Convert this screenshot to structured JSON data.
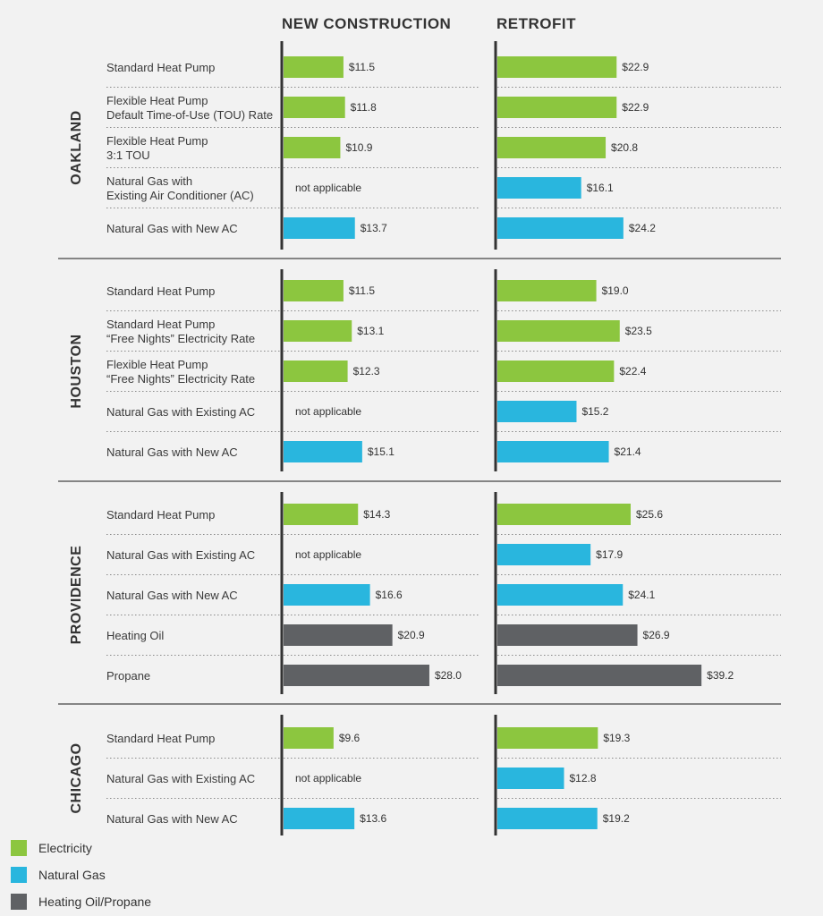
{
  "chart_data": {
    "type": "bar",
    "orientation": "horizontal",
    "panels": [
      "NEW CONSTRUCTION",
      "RETROFIT"
    ],
    "not_applicable_label": "not applicable",
    "value_prefix": "$",
    "xlim": [
      0,
      40
    ],
    "legend": [
      {
        "name": "Electricity",
        "color": "#8cc63f"
      },
      {
        "name": "Natural Gas",
        "color": "#29b6de"
      },
      {
        "name": "Heating Oil/Propane",
        "color": "#5f6164"
      }
    ],
    "cities": [
      {
        "name": "OAKLAND",
        "rows": [
          {
            "label": [
              "Standard Heat Pump"
            ],
            "type": "Electricity",
            "new": "11.5",
            "retrofit": "22.9"
          },
          {
            "label": [
              "Flexible Heat Pump",
              "Default Time-of-Use (TOU) Rate"
            ],
            "type": "Electricity",
            "new": "11.8",
            "retrofit": "22.9"
          },
          {
            "label": [
              "Flexible Heat Pump",
              "3:1 TOU"
            ],
            "type": "Electricity",
            "new": "10.9",
            "retrofit": "20.8"
          },
          {
            "label": [
              "Natural Gas with",
              "Existing Air Conditioner (AC)"
            ],
            "type": "Natural Gas",
            "new": null,
            "retrofit": "16.1"
          },
          {
            "label": [
              "Natural Gas with New AC"
            ],
            "type": "Natural Gas",
            "new": "13.7",
            "retrofit": "24.2"
          }
        ]
      },
      {
        "name": "HOUSTON",
        "rows": [
          {
            "label": [
              "Standard Heat Pump"
            ],
            "type": "Electricity",
            "new": "11.5",
            "retrofit": "19.0"
          },
          {
            "label": [
              "Standard Heat Pump",
              "“Free Nights” Electricity Rate"
            ],
            "type": "Electricity",
            "new": "13.1",
            "retrofit": "23.5"
          },
          {
            "label": [
              "Flexible Heat Pump",
              "“Free Nights” Electricity Rate"
            ],
            "type": "Electricity",
            "new": "12.3",
            "retrofit": "22.4"
          },
          {
            "label": [
              "Natural Gas with Existing AC"
            ],
            "type": "Natural Gas",
            "new": null,
            "retrofit": "15.2"
          },
          {
            "label": [
              "Natural Gas with New AC"
            ],
            "type": "Natural Gas",
            "new": "15.1",
            "retrofit": "21.4"
          }
        ]
      },
      {
        "name": "PROVIDENCE",
        "rows": [
          {
            "label": [
              "Standard Heat Pump"
            ],
            "type": "Electricity",
            "new": "14.3",
            "retrofit": "25.6"
          },
          {
            "label": [
              "Natural Gas with Existing AC"
            ],
            "type": "Natural Gas",
            "new": null,
            "retrofit": "17.9"
          },
          {
            "label": [
              "Natural Gas with New AC"
            ],
            "type": "Natural Gas",
            "new": "16.6",
            "retrofit": "24.1"
          },
          {
            "label": [
              "Heating Oil"
            ],
            "type": "Heating Oil/Propane",
            "new": "20.9",
            "retrofit": "26.9"
          },
          {
            "label": [
              "Propane"
            ],
            "type": "Heating Oil/Propane",
            "new": "28.0",
            "retrofit": "39.2"
          }
        ]
      },
      {
        "name": "CHICAGO",
        "rows": [
          {
            "label": [
              "Standard Heat Pump"
            ],
            "type": "Electricity",
            "new": "9.6",
            "retrofit": "19.3"
          },
          {
            "label": [
              "Natural Gas with Existing AC"
            ],
            "type": "Natural Gas",
            "new": null,
            "retrofit": "12.8"
          },
          {
            "label": [
              "Natural Gas with New AC"
            ],
            "type": "Natural Gas",
            "new": "13.6",
            "retrofit": "19.2"
          }
        ]
      }
    ]
  }
}
